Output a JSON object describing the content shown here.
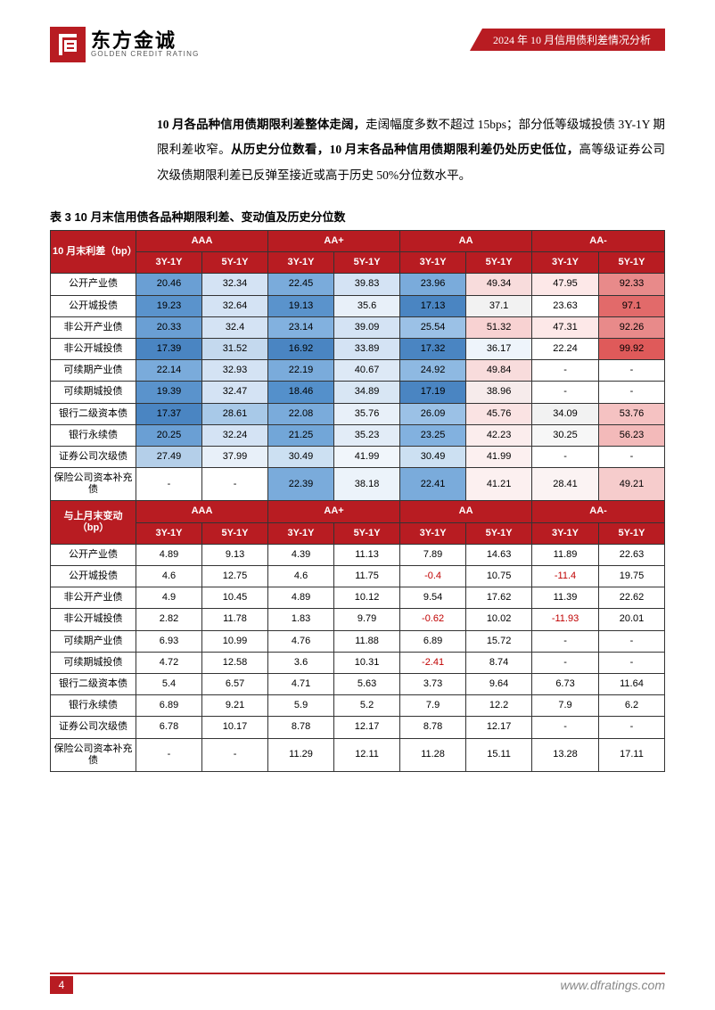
{
  "header": {
    "logo_cn": "东方金诚",
    "logo_en": "GOLDEN CREDIT RATING",
    "banner": "2024 年 10 月信用债利差情况分析"
  },
  "body": {
    "p1_bold1": "10 月各品种信用债期限利差整体走阔，",
    "p1_part1": "走阔幅度多数不超过 15bps；部分低等级城投债 3Y-1Y 期限利差收窄。",
    "p1_bold2": "从历史分位数看，10 月末各品种信用债期限利差仍处历史低位，",
    "p1_part2": "高等级证券公司次级债期限利差已反弹至接近或高于历史 50%分位数水平。"
  },
  "table": {
    "title": "表 3  10 月末信用债各品种期限利差、变动值及历史分位数",
    "section1_label": "10 月末利差（bp）",
    "section2_label": "与上月末变动（bp）",
    "rating_groups": [
      "AAA",
      "AA+",
      "AA",
      "AA-"
    ],
    "tenor_headers": [
      "3Y-1Y",
      "5Y-1Y",
      "3Y-1Y",
      "5Y-1Y",
      "3Y-1Y",
      "5Y-1Y",
      "3Y-1Y",
      "5Y-1Y"
    ],
    "row_labels": [
      "公开产业债",
      "公开城投债",
      "非公开产业债",
      "非公开城投债",
      "可续期产业债",
      "可续期城投债",
      "银行二级资本债",
      "银行永续债",
      "证券公司次级债",
      "保险公司资本补充债"
    ],
    "section1_rows": [
      [
        "20.46",
        "32.34",
        "22.45",
        "39.83",
        "23.96",
        "49.34",
        "47.95",
        "92.33"
      ],
      [
        "19.23",
        "32.64",
        "19.13",
        "35.6",
        "17.13",
        "37.1",
        "23.63",
        "97.1"
      ],
      [
        "20.33",
        "32.4",
        "23.14",
        "39.09",
        "25.54",
        "51.32",
        "47.31",
        "92.26"
      ],
      [
        "17.39",
        "31.52",
        "16.92",
        "33.89",
        "17.32",
        "36.17",
        "22.24",
        "99.92"
      ],
      [
        "22.14",
        "32.93",
        "22.19",
        "40.67",
        "24.92",
        "49.84",
        "-",
        "-"
      ],
      [
        "19.39",
        "32.47",
        "18.46",
        "34.89",
        "17.19",
        "38.96",
        "-",
        "-"
      ],
      [
        "17.37",
        "28.61",
        "22.08",
        "35.76",
        "26.09",
        "45.76",
        "34.09",
        "53.76"
      ],
      [
        "20.25",
        "32.24",
        "21.25",
        "35.23",
        "23.25",
        "42.23",
        "30.25",
        "56.23"
      ],
      [
        "27.49",
        "37.99",
        "30.49",
        "41.99",
        "30.49",
        "41.99",
        "-",
        "-"
      ],
      [
        "-",
        "-",
        "22.39",
        "38.18",
        "22.41",
        "41.21",
        "28.41",
        "49.21"
      ]
    ],
    "section1_colors": [
      [
        "#6a9fd4",
        "#d4e3f4",
        "#7aabdb",
        "#d4e3f4",
        "#7aabdb",
        "#f8dcdc",
        "#fde8e8",
        "#e88a8a"
      ],
      [
        "#5a93cc",
        "#d4e3f4",
        "#5a93cc",
        "#e8f0f9",
        "#4a85c2",
        "#f2f2f2",
        "#ffffff",
        "#e26a6a"
      ],
      [
        "#6a9fd4",
        "#d4e3f4",
        "#82b1df",
        "#d4e3f4",
        "#9bc1e6",
        "#f8d2d2",
        "#fde8e8",
        "#e88a8a"
      ],
      [
        "#4a85c2",
        "#c4d9ee",
        "#4a85c2",
        "#d4e3f4",
        "#4a85c2",
        "#eef4fb",
        "#ffffff",
        "#df5a5a"
      ],
      [
        "#7aabdb",
        "#d4e3f4",
        "#7aabdb",
        "#dde9f6",
        "#8eb9e2",
        "#f8dcdc",
        "#ffffff",
        "#ffffff"
      ],
      [
        "#5a93cc",
        "#d4e3f4",
        "#5490cb",
        "#d8e6f4",
        "#4a85c2",
        "#f6ebeb",
        "#ffffff",
        "#ffffff"
      ],
      [
        "#4a85c2",
        "#a8c9e8",
        "#7aabdb",
        "#e8f0f9",
        "#9bc1e6",
        "#fae3e3",
        "#f2f2f2",
        "#f5c2c2"
      ],
      [
        "#6a9fd4",
        "#d4e3f4",
        "#72a6d8",
        "#e2ecf7",
        "#82b1df",
        "#fbeded",
        "#f7f7f7",
        "#f3baba"
      ],
      [
        "#b4cfe9",
        "#e8f0f9",
        "#cce0f2",
        "#f1f6fb",
        "#cce0f2",
        "#fcf0f0",
        "#ffffff",
        "#ffffff"
      ],
      [
        "#ffffff",
        "#ffffff",
        "#7aabdb",
        "#ecf3fa",
        "#7aabdb",
        "#fcf0f0",
        "#fbf3f3",
        "#f6cccc"
      ]
    ],
    "section2_rows": [
      [
        "4.89",
        "9.13",
        "4.39",
        "11.13",
        "7.89",
        "14.63",
        "11.89",
        "22.63"
      ],
      [
        "4.6",
        "12.75",
        "4.6",
        "11.75",
        "-0.4",
        "10.75",
        "-11.4",
        "19.75"
      ],
      [
        "4.9",
        "10.45",
        "4.89",
        "10.12",
        "9.54",
        "17.62",
        "11.39",
        "22.62"
      ],
      [
        "2.82",
        "11.78",
        "1.83",
        "9.79",
        "-0.62",
        "10.02",
        "-11.93",
        "20.01"
      ],
      [
        "6.93",
        "10.99",
        "4.76",
        "11.88",
        "6.89",
        "15.72",
        "-",
        "-"
      ],
      [
        "4.72",
        "12.58",
        "3.6",
        "10.31",
        "-2.41",
        "8.74",
        "-",
        "-"
      ],
      [
        "5.4",
        "6.57",
        "4.71",
        "5.63",
        "3.73",
        "9.64",
        "6.73",
        "11.64"
      ],
      [
        "6.89",
        "9.21",
        "5.9",
        "5.2",
        "7.9",
        "12.2",
        "7.9",
        "6.2"
      ],
      [
        "6.78",
        "10.17",
        "8.78",
        "12.17",
        "8.78",
        "12.17",
        "-",
        "-"
      ],
      [
        "-",
        "-",
        "11.29",
        "12.11",
        "11.28",
        "15.11",
        "13.28",
        "17.11"
      ]
    ]
  },
  "footer": {
    "page_number": "4",
    "url": "www.dfratings.com"
  },
  "colors": {
    "brand_red": "#b81c22",
    "neg_text": "#c00000"
  }
}
